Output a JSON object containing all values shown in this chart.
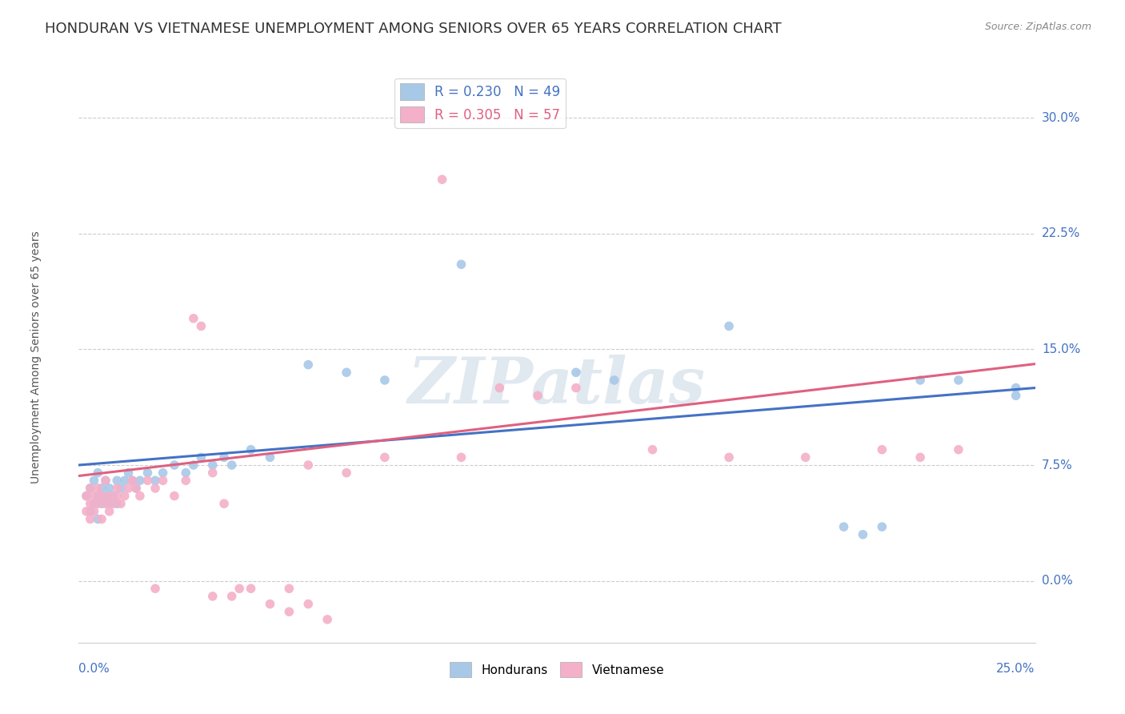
{
  "title": "HONDURAN VS VIETNAMESE UNEMPLOYMENT AMONG SENIORS OVER 65 YEARS CORRELATION CHART",
  "source": "Source: ZipAtlas.com",
  "ylabel": "Unemployment Among Seniors over 65 years",
  "ytick_vals": [
    0.0,
    7.5,
    15.0,
    22.5,
    30.0
  ],
  "ytick_labels": [
    "0.0%",
    "7.5%",
    "15.0%",
    "22.5%",
    "30.0%"
  ],
  "xlim": [
    0.0,
    25.0
  ],
  "ylim": [
    -4.0,
    33.0
  ],
  "legend1_label_blue": "R = 0.230   N = 49",
  "legend1_label_pink": "R = 0.305   N = 57",
  "legend2_label_blue": "Hondurans",
  "legend2_label_pink": "Vietnamese",
  "blue_scatter": [
    [
      0.2,
      5.5
    ],
    [
      0.3,
      4.5
    ],
    [
      0.3,
      6.0
    ],
    [
      0.4,
      5.0
    ],
    [
      0.4,
      6.5
    ],
    [
      0.5,
      4.0
    ],
    [
      0.5,
      5.5
    ],
    [
      0.5,
      7.0
    ],
    [
      0.6,
      5.0
    ],
    [
      0.6,
      6.0
    ],
    [
      0.7,
      5.5
    ],
    [
      0.7,
      6.5
    ],
    [
      0.8,
      5.0
    ],
    [
      0.8,
      6.0
    ],
    [
      0.9,
      5.5
    ],
    [
      1.0,
      5.0
    ],
    [
      1.0,
      6.5
    ],
    [
      1.1,
      6.0
    ],
    [
      1.2,
      6.5
    ],
    [
      1.3,
      7.0
    ],
    [
      1.4,
      6.5
    ],
    [
      1.5,
      6.0
    ],
    [
      1.6,
      6.5
    ],
    [
      1.8,
      7.0
    ],
    [
      2.0,
      6.5
    ],
    [
      2.2,
      7.0
    ],
    [
      2.5,
      7.5
    ],
    [
      2.8,
      7.0
    ],
    [
      3.0,
      7.5
    ],
    [
      3.2,
      8.0
    ],
    [
      3.5,
      7.5
    ],
    [
      3.8,
      8.0
    ],
    [
      4.0,
      7.5
    ],
    [
      4.5,
      8.5
    ],
    [
      5.0,
      8.0
    ],
    [
      6.0,
      14.0
    ],
    [
      7.0,
      13.5
    ],
    [
      8.0,
      13.0
    ],
    [
      10.0,
      20.5
    ],
    [
      13.0,
      13.5
    ],
    [
      14.0,
      13.0
    ],
    [
      17.0,
      16.5
    ],
    [
      20.0,
      3.5
    ],
    [
      20.5,
      3.0
    ],
    [
      21.0,
      3.5
    ],
    [
      22.0,
      13.0
    ],
    [
      23.0,
      13.0
    ],
    [
      24.5,
      12.5
    ],
    [
      24.5,
      12.0
    ]
  ],
  "pink_scatter": [
    [
      0.2,
      4.5
    ],
    [
      0.2,
      5.5
    ],
    [
      0.3,
      4.0
    ],
    [
      0.3,
      5.0
    ],
    [
      0.3,
      6.0
    ],
    [
      0.4,
      4.5
    ],
    [
      0.4,
      5.5
    ],
    [
      0.5,
      5.0
    ],
    [
      0.5,
      6.0
    ],
    [
      0.6,
      4.0
    ],
    [
      0.6,
      5.5
    ],
    [
      0.7,
      5.0
    ],
    [
      0.7,
      6.5
    ],
    [
      0.8,
      4.5
    ],
    [
      0.8,
      5.5
    ],
    [
      0.9,
      5.0
    ],
    [
      1.0,
      5.5
    ],
    [
      1.0,
      6.0
    ],
    [
      1.1,
      5.0
    ],
    [
      1.2,
      5.5
    ],
    [
      1.3,
      6.0
    ],
    [
      1.4,
      6.5
    ],
    [
      1.5,
      6.0
    ],
    [
      1.6,
      5.5
    ],
    [
      1.8,
      6.5
    ],
    [
      2.0,
      6.0
    ],
    [
      2.0,
      -0.5
    ],
    [
      2.2,
      6.5
    ],
    [
      2.5,
      5.5
    ],
    [
      2.8,
      6.5
    ],
    [
      3.0,
      17.0
    ],
    [
      3.2,
      16.5
    ],
    [
      3.5,
      7.0
    ],
    [
      3.8,
      5.0
    ],
    [
      4.0,
      -1.0
    ],
    [
      4.5,
      -0.5
    ],
    [
      5.0,
      -1.5
    ],
    [
      5.5,
      -0.5
    ],
    [
      6.0,
      7.5
    ],
    [
      7.0,
      7.0
    ],
    [
      8.0,
      8.0
    ],
    [
      9.5,
      26.0
    ],
    [
      10.0,
      8.0
    ],
    [
      11.0,
      12.5
    ],
    [
      12.0,
      12.0
    ],
    [
      13.0,
      12.5
    ],
    [
      15.0,
      8.5
    ],
    [
      17.0,
      8.0
    ],
    [
      19.0,
      8.0
    ],
    [
      21.0,
      8.5
    ],
    [
      22.0,
      8.0
    ],
    [
      23.0,
      8.5
    ],
    [
      3.5,
      -1.0
    ],
    [
      4.2,
      -0.5
    ],
    [
      5.5,
      -2.0
    ],
    [
      6.0,
      -1.5
    ],
    [
      6.5,
      -2.5
    ]
  ],
  "blue_line_intercept": 7.5,
  "blue_line_slope": 0.2,
  "pink_line_intercept": 6.8,
  "pink_line_slope": 0.29,
  "scatter_color_blue": "#a8c8e8",
  "scatter_color_pink": "#f4b0c8",
  "line_color_blue": "#4472c4",
  "line_color_pink": "#e06080",
  "tick_color": "#4472c4",
  "background_color": "#ffffff",
  "watermark_text": "ZIPatlas",
  "title_fontsize": 13,
  "axis_label_fontsize": 10,
  "tick_fontsize": 11,
  "source_fontsize": 9
}
